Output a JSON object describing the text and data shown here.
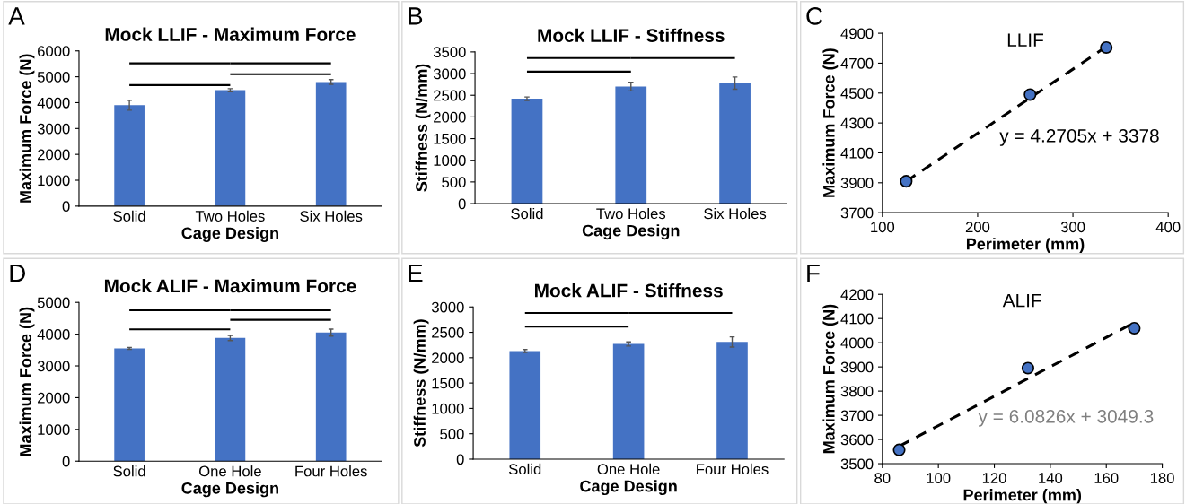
{
  "chart_data": [
    {
      "type": "bar",
      "title": "Mock LLIF - Maximum Force",
      "xlabel": "Cage Design",
      "ylabel": "Maximum Force (N)",
      "annotations": [
        "A"
      ],
      "categories": [
        "Solid",
        "Two Holes",
        "Six Holes"
      ],
      "values": [
        3900,
        4480,
        4800
      ],
      "errors": [
        190,
        60,
        90
      ],
      "color": "#4472c4",
      "ylim": [
        0,
        6000
      ],
      "yticks": [
        0,
        1000,
        2000,
        3000,
        4000,
        5000,
        6000
      ],
      "grid": false,
      "legend": false
    },
    {
      "type": "bar",
      "title": "Mock LLIF - Stiffness",
      "xlabel": "Cage Design",
      "ylabel": "Stiffness (N/mm)",
      "annotations": [
        "B"
      ],
      "categories": [
        "Solid",
        "Two Holes",
        "Six Holes"
      ],
      "values": [
        2420,
        2700,
        2780
      ],
      "errors": [
        40,
        100,
        140
      ],
      "color": "#4472c4",
      "ylim": [
        0,
        3500
      ],
      "yticks": [
        0,
        500,
        1000,
        1500,
        2000,
        2500,
        3000,
        3500
      ],
      "grid": false,
      "legend": false
    },
    {
      "type": "scatter",
      "title": "LLIF",
      "xlabel": "Perimeter (mm)",
      "ylabel": "Maximum Force (N)",
      "annotations": [
        "C",
        "y = 4.2705x + 3378"
      ],
      "series": [
        {
          "type": "scatter",
          "x": [
            125,
            255,
            335
          ],
          "values": [
            3910,
            4490,
            4805
          ],
          "color": "#4472c4",
          "marker": "circle"
        },
        {
          "type": "line",
          "x": [
            125,
            335
          ],
          "values": [
            3910,
            4810
          ],
          "color": "#000000",
          "line_style": "dashed",
          "marker": "none"
        }
      ],
      "xlim": [
        100,
        400
      ],
      "xticks": [
        100,
        200,
        300,
        400
      ],
      "ylim": [
        3700,
        4900
      ],
      "yticks": [
        3700,
        3900,
        4100,
        4300,
        4500,
        4700,
        4900
      ],
      "grid": false,
      "legend": false
    },
    {
      "type": "bar",
      "title": "Mock ALIF - Maximum Force",
      "xlabel": "Cage Design",
      "ylabel": "Maximum Force (N)",
      "annotations": [
        "D"
      ],
      "categories": [
        "Solid",
        "One Hole",
        "Four Holes"
      ],
      "values": [
        3550,
        3880,
        4050
      ],
      "errors": [
        30,
        80,
        110
      ],
      "color": "#4472c4",
      "ylim": [
        0,
        5000
      ],
      "yticks": [
        0,
        1000,
        2000,
        3000,
        4000,
        5000
      ],
      "grid": false,
      "legend": false
    },
    {
      "type": "bar",
      "title": "Mock ALIF - Stiffness",
      "xlabel": "Cage Design",
      "ylabel": "Stiffness (N/mm)",
      "annotations": [
        "E"
      ],
      "categories": [
        "Solid",
        "One Hole",
        "Four Holes"
      ],
      "values": [
        2130,
        2270,
        2310
      ],
      "errors": [
        30,
        40,
        100
      ],
      "color": "#4472c4",
      "ylim": [
        0,
        3000
      ],
      "yticks": [
        0,
        500,
        1000,
        1500,
        2000,
        2500,
        3000
      ],
      "grid": false,
      "legend": false
    },
    {
      "type": "scatter",
      "title": "ALIF",
      "xlabel": "Perimeter (mm)",
      "ylabel": "Maximum Force (N)",
      "annotations": [
        "F",
        "y = 6.0826x + 3049.3"
      ],
      "series": [
        {
          "type": "scatter",
          "x": [
            86,
            132,
            170
          ],
          "values": [
            3557,
            3895,
            4060
          ],
          "color": "#4472c4",
          "marker": "circle"
        },
        {
          "type": "line",
          "x": [
            86,
            170
          ],
          "values": [
            3572,
            4083
          ],
          "color": "#000000",
          "line_style": "dashed",
          "marker": "none"
        }
      ],
      "xlim": [
        80,
        180
      ],
      "xticks": [
        80,
        100,
        120,
        140,
        160,
        180
      ],
      "ylim": [
        3500,
        4200
      ],
      "yticks": [
        3500,
        3600,
        3700,
        3800,
        3900,
        4000,
        4100,
        4200
      ],
      "grid": false,
      "legend": false
    }
  ]
}
